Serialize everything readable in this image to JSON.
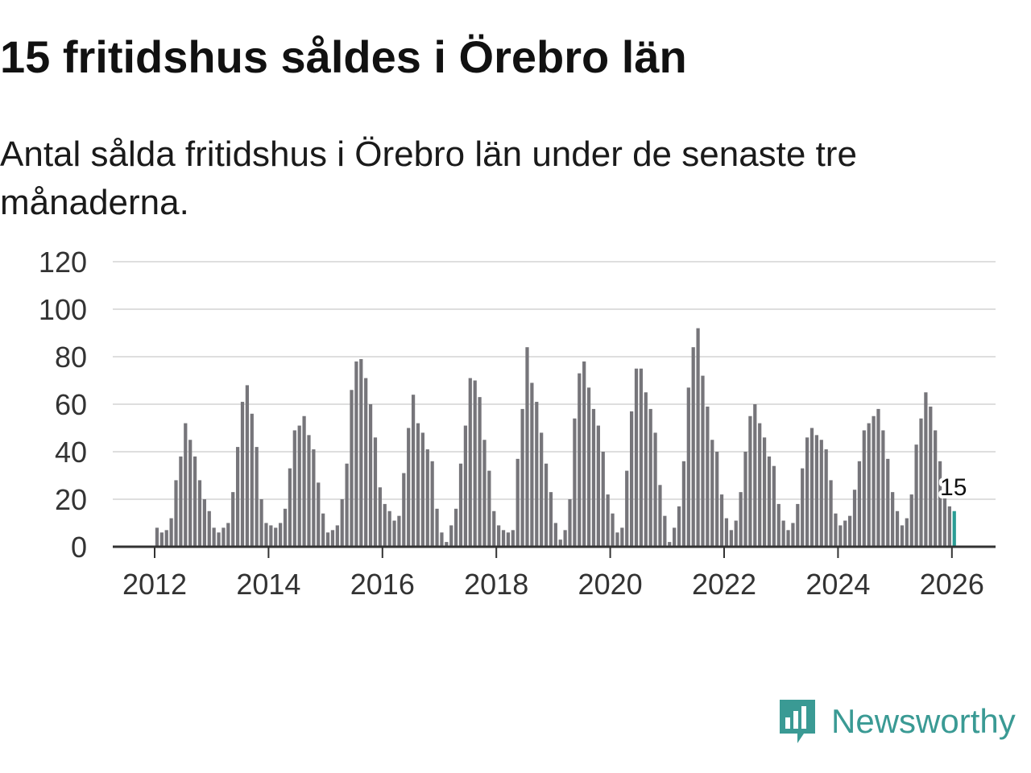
{
  "header": {
    "title": "15 fritidshus såldes i Örebro län",
    "subtitle": "Antal sålda fritidshus i Örebro län under de senaste tre månaderna."
  },
  "brand": {
    "name": "Newsworthy",
    "icon": "newsworthy-logo-icon",
    "color": "#3a9a94"
  },
  "chart_data": {
    "type": "bar",
    "title": "15 fritidshus såldes i Örebro län",
    "subtitle": "Antal sålda fritidshus i Örebro län under de senaste tre månaderna.",
    "xlabel": "",
    "ylabel": "",
    "ylim": [
      0,
      120
    ],
    "yticks": [
      0,
      20,
      40,
      60,
      80,
      100,
      120
    ],
    "xticks": [
      "2012",
      "2014",
      "2016",
      "2018",
      "2020",
      "2022",
      "2024",
      "2026"
    ],
    "x_start": {
      "year": 2012,
      "month": 1
    },
    "grid": true,
    "bar_color": "#76757a",
    "highlight_color": "#2a9d95",
    "highlight_last": true,
    "last_value_label": "15",
    "values": [
      8,
      6,
      7,
      12,
      28,
      38,
      52,
      45,
      38,
      28,
      20,
      15,
      8,
      6,
      8,
      10,
      23,
      42,
      61,
      68,
      56,
      42,
      20,
      10,
      9,
      8,
      10,
      16,
      33,
      49,
      51,
      55,
      47,
      41,
      27,
      14,
      6,
      7,
      9,
      20,
      35,
      66,
      78,
      79,
      71,
      60,
      46,
      25,
      18,
      15,
      11,
      13,
      31,
      50,
      64,
      52,
      48,
      41,
      36,
      16,
      6,
      2,
      9,
      16,
      35,
      51,
      71,
      70,
      63,
      45,
      32,
      15,
      9,
      7,
      6,
      7,
      37,
      58,
      84,
      69,
      61,
      48,
      35,
      23,
      10,
      3,
      7,
      20,
      54,
      73,
      78,
      67,
      58,
      51,
      40,
      22,
      14,
      6,
      8,
      32,
      57,
      75,
      75,
      65,
      58,
      48,
      26,
      13,
      2,
      8,
      17,
      36,
      67,
      84,
      92,
      72,
      59,
      45,
      40,
      22,
      12,
      7,
      11,
      23,
      40,
      55,
      60,
      52,
      46,
      38,
      34,
      18,
      11,
      7,
      10,
      18,
      33,
      46,
      50,
      47,
      45,
      41,
      28,
      14,
      9,
      11,
      13,
      24,
      36,
      49,
      52,
      55,
      58,
      49,
      37,
      23,
      15,
      9,
      12,
      22,
      43,
      54,
      65,
      59,
      49,
      36,
      26,
      17,
      15
    ]
  }
}
